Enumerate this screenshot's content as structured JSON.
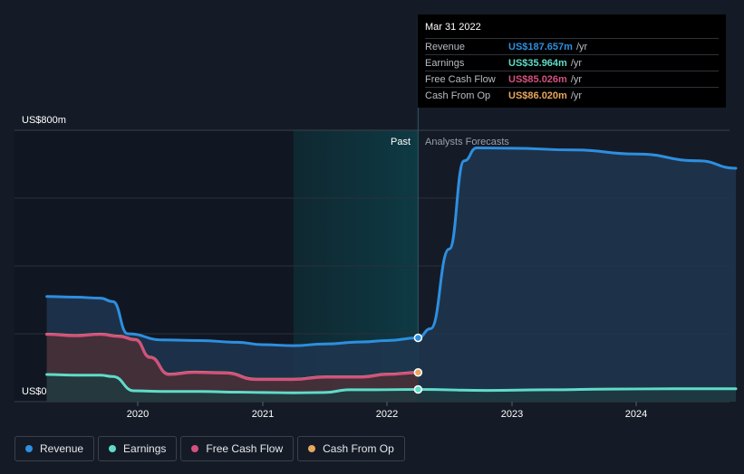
{
  "chart_data": {
    "type": "line",
    "y_axis": {
      "max_label": "US$800m",
      "min_label": "US$0",
      "ylim": [
        0,
        800
      ]
    },
    "x_axis": {
      "ticks": [
        "2020",
        "2021",
        "2022",
        "2023",
        "2024"
      ],
      "xlim": [
        2019.27,
        2024.8
      ]
    },
    "past_label": "Past",
    "forecast_label": "Analysts Forecasts",
    "divider_x": 2022.25,
    "grid": true,
    "series": [
      {
        "name": "Revenue",
        "color": "#2d8fe0",
        "fill": "#1f3650",
        "extends_to_forecast": true,
        "points": [
          [
            2019.27,
            310
          ],
          [
            2019.5,
            308
          ],
          [
            2019.7,
            305
          ],
          [
            2019.8,
            295
          ],
          [
            2019.92,
            200
          ],
          [
            2020.2,
            182
          ],
          [
            2020.5,
            180
          ],
          [
            2020.8,
            175
          ],
          [
            2021.0,
            168
          ],
          [
            2021.25,
            165
          ],
          [
            2021.5,
            170
          ],
          [
            2021.8,
            176
          ],
          [
            2022.0,
            180
          ],
          [
            2022.25,
            188
          ],
          [
            2022.35,
            215
          ],
          [
            2022.5,
            450
          ],
          [
            2022.62,
            710
          ],
          [
            2022.72,
            748
          ],
          [
            2023.0,
            747
          ],
          [
            2023.5,
            742
          ],
          [
            2024.0,
            730
          ],
          [
            2024.5,
            710
          ],
          [
            2024.8,
            688
          ]
        ]
      },
      {
        "name": "Earnings",
        "color": "#5fdcc9",
        "fill": "#1e3a3f",
        "extends_to_forecast": true,
        "points": [
          [
            2019.27,
            80
          ],
          [
            2019.5,
            78
          ],
          [
            2019.7,
            78
          ],
          [
            2019.8,
            74
          ],
          [
            2019.97,
            32
          ],
          [
            2020.2,
            30
          ],
          [
            2020.5,
            30
          ],
          [
            2020.8,
            28
          ],
          [
            2021.0,
            27
          ],
          [
            2021.25,
            26
          ],
          [
            2021.5,
            27
          ],
          [
            2021.7,
            35
          ],
          [
            2021.9,
            35
          ],
          [
            2022.25,
            36
          ],
          [
            2022.8,
            33
          ],
          [
            2023.3,
            35
          ],
          [
            2023.8,
            37
          ],
          [
            2024.3,
            38
          ],
          [
            2024.8,
            38
          ]
        ]
      },
      {
        "name": "Free Cash Flow",
        "color": "#d3507f",
        "fill": null,
        "extends_to_forecast": false,
        "points": [
          [
            2019.27,
            198
          ],
          [
            2019.5,
            194
          ],
          [
            2019.7,
            198
          ],
          [
            2019.85,
            192
          ],
          [
            2019.98,
            182
          ],
          [
            2020.1,
            130
          ],
          [
            2020.25,
            80
          ],
          [
            2020.45,
            86
          ],
          [
            2020.7,
            84
          ],
          [
            2020.95,
            65
          ],
          [
            2021.25,
            65
          ],
          [
            2021.5,
            72
          ],
          [
            2021.8,
            72
          ],
          [
            2022.0,
            80
          ],
          [
            2022.25,
            85
          ]
        ]
      },
      {
        "name": "Cash From Op",
        "color": "#e7a75d",
        "fill": "#4a2f35",
        "extends_to_forecast": false,
        "points": [
          [
            2019.27,
            199
          ],
          [
            2019.5,
            195
          ],
          [
            2019.7,
            199
          ],
          [
            2019.85,
            193
          ],
          [
            2019.98,
            183
          ],
          [
            2020.1,
            131
          ],
          [
            2020.25,
            81
          ],
          [
            2020.45,
            87
          ],
          [
            2020.7,
            85
          ],
          [
            2020.95,
            66
          ],
          [
            2021.25,
            66
          ],
          [
            2021.5,
            73
          ],
          [
            2021.8,
            73
          ],
          [
            2022.0,
            81
          ],
          [
            2022.25,
            86
          ]
        ]
      }
    ]
  },
  "tooltip": {
    "date": "Mar 31 2022",
    "rows": [
      {
        "name": "Revenue",
        "value": "US$187.657m",
        "unit": "/yr",
        "color": "#2d8fe0"
      },
      {
        "name": "Earnings",
        "value": "US$35.964m",
        "unit": "/yr",
        "color": "#5fdcc9"
      },
      {
        "name": "Free Cash Flow",
        "value": "US$85.026m",
        "unit": "/yr",
        "color": "#d3507f"
      },
      {
        "name": "Cash From Op",
        "value": "US$86.020m",
        "unit": "/yr",
        "color": "#e7a75d"
      }
    ]
  },
  "legend": [
    {
      "label": "Revenue",
      "color": "#2d8fe0"
    },
    {
      "label": "Earnings",
      "color": "#5fdcc9"
    },
    {
      "label": "Free Cash Flow",
      "color": "#d3507f"
    },
    {
      "label": "Cash From Op",
      "color": "#e7a75d"
    }
  ]
}
